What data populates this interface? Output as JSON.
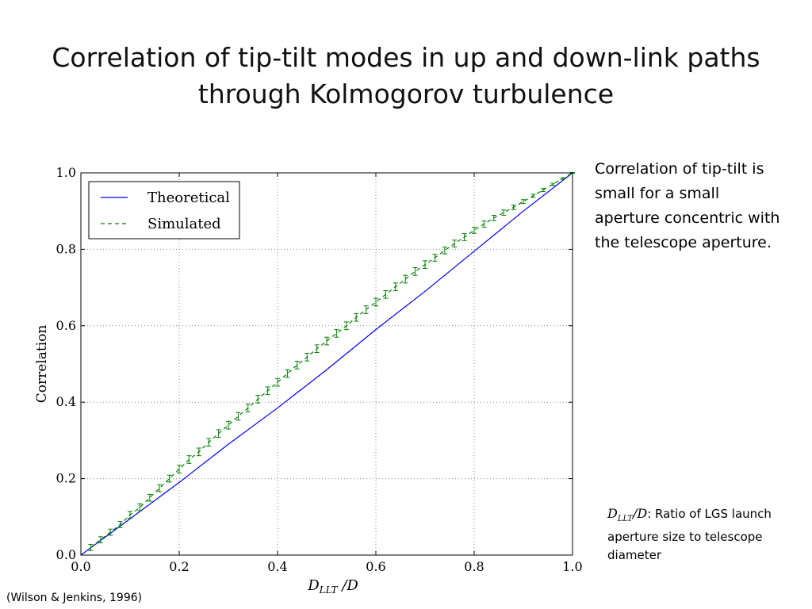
{
  "slide": {
    "title_line1": "Correlation of tip-tilt modes in up and down-link paths",
    "title_line2": "through Kolmogorov turbulence",
    "side_note": "Correlation of tip-tilt is small for a small aperture concentric with the telescope aperture.",
    "symbol_main": "D",
    "symbol_sub": "LLT",
    "symbol_den": "/D",
    "symbol_desc": ": Ratio of LGS launch aperture size to telescope diameter",
    "citation": "(Wilson & Jenkins, 1996)"
  },
  "colors": {
    "theoretical": "#0000ff",
    "simulated": "#008000",
    "grid": "#888888"
  },
  "chart_data": {
    "type": "line",
    "title": "",
    "xlabel": "D_LLT / D",
    "ylabel": "Correlation",
    "xlim": [
      0.0,
      1.0
    ],
    "ylim": [
      0.0,
      1.0
    ],
    "xticks": [
      "0.0",
      "0.2",
      "0.4",
      "0.6",
      "0.8",
      "1.0"
    ],
    "yticks": [
      "0.0",
      "0.2",
      "0.4",
      "0.6",
      "0.8",
      "1.0"
    ],
    "grid": true,
    "legend_position": "top-left",
    "series": [
      {
        "name": "Theoretical",
        "style": "solid",
        "x": [
          0.0,
          0.1,
          0.2,
          0.3,
          0.4,
          0.5,
          0.6,
          0.7,
          0.8,
          0.9,
          1.0
        ],
        "y": [
          0.0,
          0.095,
          0.19,
          0.29,
          0.385,
          0.485,
          0.59,
          0.69,
          0.795,
          0.9,
          1.0
        ]
      },
      {
        "name": "Simulated",
        "style": "dashed",
        "error_bars": true,
        "x": [
          0.02,
          0.04,
          0.06,
          0.08,
          0.1,
          0.12,
          0.14,
          0.16,
          0.18,
          0.2,
          0.22,
          0.24,
          0.26,
          0.28,
          0.3,
          0.32,
          0.34,
          0.36,
          0.38,
          0.4,
          0.42,
          0.44,
          0.46,
          0.48,
          0.5,
          0.52,
          0.54,
          0.56,
          0.58,
          0.6,
          0.62,
          0.64,
          0.66,
          0.68,
          0.7,
          0.72,
          0.74,
          0.76,
          0.78,
          0.8,
          0.82,
          0.84,
          0.86,
          0.88,
          0.9,
          0.92,
          0.94,
          0.96,
          0.98,
          1.0
        ],
        "y": [
          0.02,
          0.04,
          0.06,
          0.08,
          0.105,
          0.125,
          0.15,
          0.175,
          0.2,
          0.225,
          0.25,
          0.27,
          0.295,
          0.318,
          0.34,
          0.363,
          0.385,
          0.408,
          0.43,
          0.452,
          0.475,
          0.497,
          0.518,
          0.54,
          0.56,
          0.58,
          0.6,
          0.622,
          0.642,
          0.662,
          0.682,
          0.702,
          0.722,
          0.742,
          0.76,
          0.778,
          0.797,
          0.815,
          0.832,
          0.85,
          0.866,
          0.882,
          0.896,
          0.91,
          0.925,
          0.94,
          0.955,
          0.97,
          0.985,
          1.0
        ],
        "err": [
          0.008,
          0.008,
          0.008,
          0.008,
          0.009,
          0.009,
          0.009,
          0.009,
          0.009,
          0.01,
          0.01,
          0.01,
          0.01,
          0.01,
          0.01,
          0.01,
          0.01,
          0.01,
          0.01,
          0.01,
          0.01,
          0.01,
          0.01,
          0.01,
          0.01,
          0.01,
          0.01,
          0.01,
          0.01,
          0.01,
          0.01,
          0.01,
          0.01,
          0.01,
          0.01,
          0.009,
          0.009,
          0.009,
          0.009,
          0.008,
          0.008,
          0.007,
          0.007,
          0.006,
          0.005,
          0.004,
          0.004,
          0.003,
          0.002,
          0.001
        ]
      }
    ]
  }
}
